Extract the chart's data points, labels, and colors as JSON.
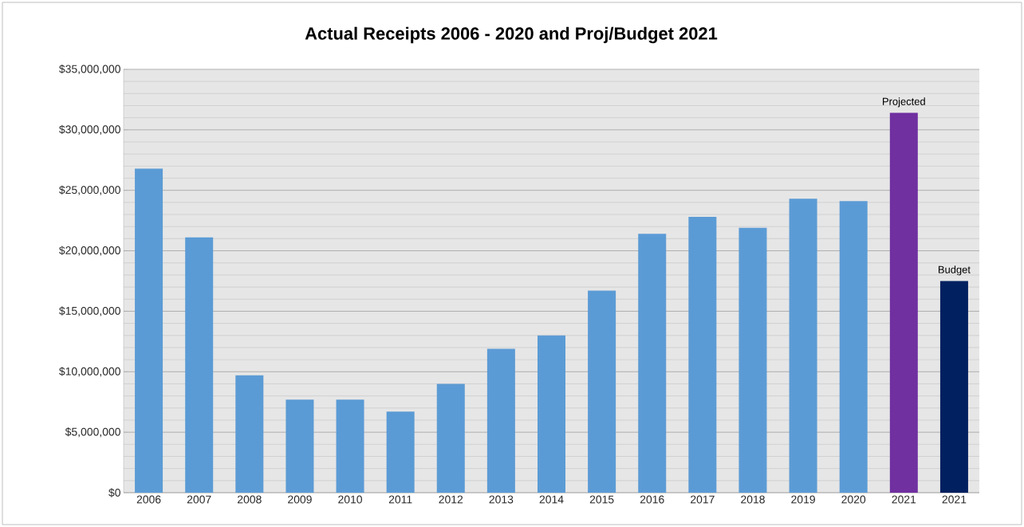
{
  "chart_data": {
    "type": "bar",
    "title": "Actual Receipts 2006 - 2020 and Proj/Budget 2021",
    "categories": [
      "2006",
      "2007",
      "2008",
      "2009",
      "2010",
      "2011",
      "2012",
      "2013",
      "2014",
      "2015",
      "2016",
      "2017",
      "2018",
      "2019",
      "2020",
      "2021",
      "2021"
    ],
    "values": [
      26800000,
      21100000,
      9700000,
      7700000,
      7700000,
      6700000,
      9000000,
      11900000,
      13000000,
      16700000,
      21400000,
      22800000,
      21900000,
      24300000,
      24100000,
      31400000,
      17500000
    ],
    "colors": [
      "#5b9bd5",
      "#5b9bd5",
      "#5b9bd5",
      "#5b9bd5",
      "#5b9bd5",
      "#5b9bd5",
      "#5b9bd5",
      "#5b9bd5",
      "#5b9bd5",
      "#5b9bd5",
      "#5b9bd5",
      "#5b9bd5",
      "#5b9bd5",
      "#5b9bd5",
      "#5b9bd5",
      "#7030a0",
      "#002060"
    ],
    "value_labels": [
      null,
      null,
      null,
      null,
      null,
      null,
      null,
      null,
      null,
      null,
      null,
      null,
      null,
      null,
      null,
      "Projected",
      "Budget"
    ],
    "ylim": [
      0,
      35000000
    ],
    "yticks": [
      {
        "value": 0,
        "label": "$0"
      },
      {
        "value": 5000000,
        "label": "$5,000,000"
      },
      {
        "value": 10000000,
        "label": "$10,000,000"
      },
      {
        "value": 15000000,
        "label": "$15,000,000"
      },
      {
        "value": 20000000,
        "label": "$20,000,000"
      },
      {
        "value": 25000000,
        "label": "$25,000,000"
      },
      {
        "value": 30000000,
        "label": "$30,000,000"
      },
      {
        "value": 35000000,
        "label": "$35,000,000"
      }
    ],
    "grid": "y"
  }
}
